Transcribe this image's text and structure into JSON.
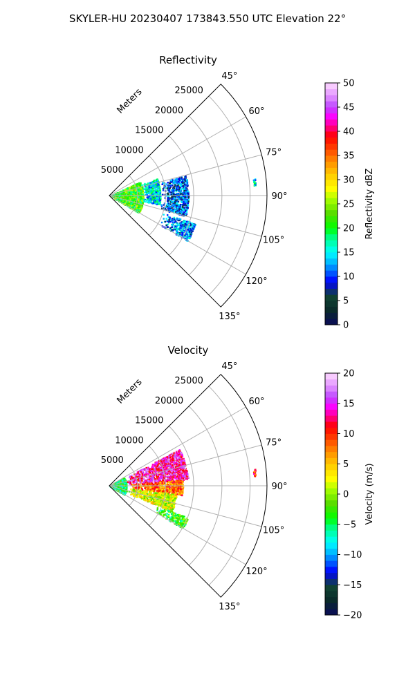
{
  "figure": {
    "suptitle": "SKYLER-HU  20230407  173843.550 UTC Elevation 22°"
  },
  "chart_data": [
    {
      "type": "heatmap",
      "projection": "polar-sector",
      "title": "Reflectivity",
      "r_axis_label": "Meters",
      "r_ticks": [
        5000,
        10000,
        15000,
        20000,
        25000
      ],
      "r_tick_labels": [
        "5000",
        "10000",
        "15000",
        "20000",
        "25000"
      ],
      "r_range": [
        0,
        28000
      ],
      "theta_range_deg": [
        45,
        135
      ],
      "theta_ticks_deg": [
        45,
        60,
        75,
        90,
        105,
        120,
        135
      ],
      "theta_tick_labels": [
        "45°",
        "60°",
        "75°",
        "90°",
        "105°",
        "120°",
        "135°"
      ],
      "grid": true,
      "colorbar": {
        "label": "Reflectivity dBZ",
        "range": [
          0,
          50
        ],
        "ticks": [
          0,
          5,
          10,
          15,
          20,
          25,
          30,
          35,
          40,
          45,
          50
        ],
        "tick_labels": [
          "0",
          "5",
          "10",
          "15",
          "20",
          "25",
          "30",
          "35",
          "40",
          "45",
          "50"
        ],
        "placement": "right"
      },
      "echo_regions": [
        {
          "r_range_m": [
            0,
            6000
          ],
          "theta_range_deg": [
            65,
            120
          ],
          "approx_value": 22
        },
        {
          "r_range_m": [
            6000,
            9000
          ],
          "theta_range_deg": [
            70,
            100
          ],
          "approx_value": 15
        },
        {
          "r_range_m": [
            9000,
            14000
          ],
          "theta_range_deg": [
            75,
            105
          ],
          "approx_value": 10
        },
        {
          "r_range_m": [
            10000,
            16000
          ],
          "theta_range_deg": [
            108,
            120
          ],
          "approx_value": 12
        },
        {
          "r_range_m": [
            25500,
            26000
          ],
          "theta_range_deg": [
            83,
            86
          ],
          "approx_value": 15
        }
      ]
    },
    {
      "type": "heatmap",
      "projection": "polar-sector",
      "title": "Velocity",
      "r_axis_label": "Meters",
      "r_ticks": [
        5000,
        10000,
        15000,
        20000,
        25000
      ],
      "r_tick_labels": [
        "5000",
        "10000",
        "15000",
        "20000",
        "25000"
      ],
      "r_range": [
        0,
        28000
      ],
      "theta_range_deg": [
        45,
        135
      ],
      "theta_ticks_deg": [
        45,
        60,
        75,
        90,
        105,
        120,
        135
      ],
      "theta_tick_labels": [
        "45°",
        "60°",
        "75°",
        "90°",
        "105°",
        "120°",
        "135°"
      ],
      "grid": true,
      "colorbar": {
        "label": "Velocity (m/s)",
        "range": [
          -20,
          20
        ],
        "ticks": [
          -20,
          -15,
          -10,
          -5,
          0,
          5,
          10,
          15,
          20
        ],
        "tick_labels": [
          "−20",
          "−15",
          "−10",
          "−5",
          "0",
          "5",
          "10",
          "15",
          "20"
        ],
        "placement": "right"
      },
      "echo_regions": [
        {
          "r_range_m": [
            0,
            3000
          ],
          "theta_range_deg": [
            60,
            120
          ],
          "approx_value": -5
        },
        {
          "r_range_m": [
            3000,
            14000
          ],
          "theta_range_deg": [
            62,
            85
          ],
          "approx_value": 14
        },
        {
          "r_range_m": [
            3000,
            13000
          ],
          "theta_range_deg": [
            85,
            97
          ],
          "approx_value": 8
        },
        {
          "r_range_m": [
            3000,
            12000
          ],
          "theta_range_deg": [
            97,
            112
          ],
          "approx_value": 2
        },
        {
          "r_range_m": [
            9000,
            15000
          ],
          "theta_range_deg": [
            112,
            120
          ],
          "approx_value": -3
        },
        {
          "r_range_m": [
            25500,
            26000
          ],
          "theta_range_deg": [
            83,
            86
          ],
          "approx_value": 10
        }
      ]
    }
  ]
}
